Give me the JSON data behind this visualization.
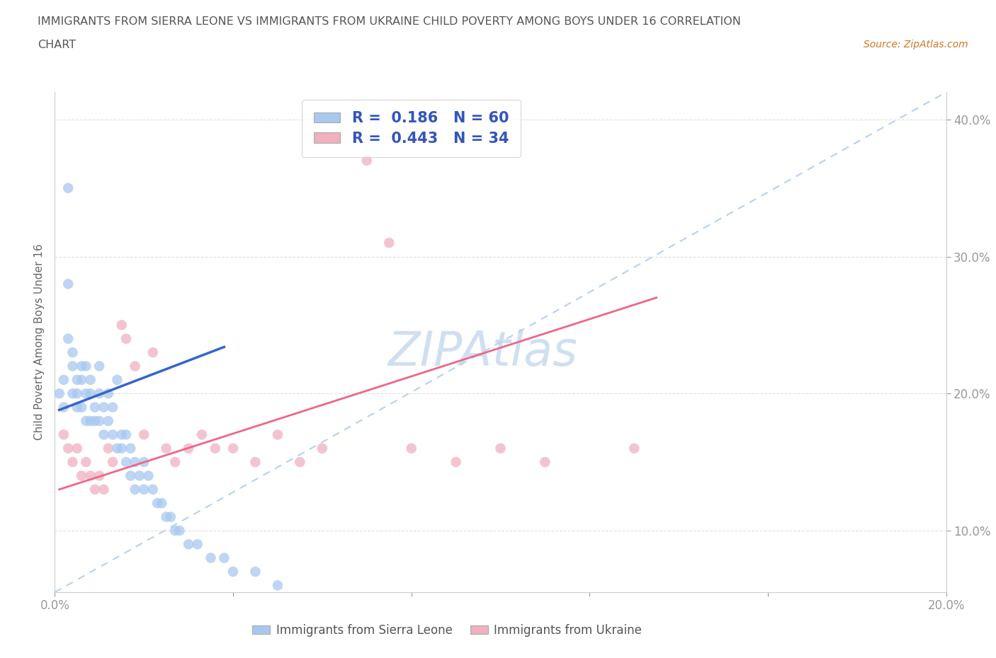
{
  "title_line1": "IMMIGRANTS FROM SIERRA LEONE VS IMMIGRANTS FROM UKRAINE CHILD POVERTY AMONG BOYS UNDER 16 CORRELATION",
  "title_line2": "CHART",
  "source_text": "Source: ZipAtlas.com",
  "ylabel": "Child Poverty Among Boys Under 16",
  "xlim": [
    0.0,
    0.2
  ],
  "ylim": [
    0.055,
    0.42
  ],
  "xtick_vals": [
    0.0,
    0.04,
    0.08,
    0.12,
    0.16,
    0.2
  ],
  "xtick_labels": [
    "0.0%",
    "",
    "",
    "",
    "",
    "20.0%"
  ],
  "ytick_vals": [
    0.1,
    0.2,
    0.3,
    0.4
  ],
  "ytick_labels": [
    "10.0%",
    "20.0%",
    "30.0%",
    "40.0%"
  ],
  "sierra_leone_color": "#a8c8f0",
  "ukraine_color": "#f0b0c0",
  "sierra_leone_R": 0.186,
  "sierra_leone_N": 60,
  "ukraine_R": 0.443,
  "ukraine_N": 34,
  "trend_line_blue_color": "#3366cc",
  "trend_line_pink_color": "#ee6688",
  "diagonal_line_color": "#b8d0f0",
  "watermark": "ZIPAtlas",
  "watermark_color": "#d0dff0",
  "background_color": "#ffffff",
  "legend_text_color": "#3355bb",
  "axis_label_color": "#3355bb",
  "title_color": "#555555",
  "source_color": "#cc7722",
  "sl_x": [
    0.001,
    0.002,
    0.002,
    0.003,
    0.003,
    0.003,
    0.004,
    0.004,
    0.004,
    0.005,
    0.005,
    0.005,
    0.006,
    0.006,
    0.006,
    0.007,
    0.007,
    0.007,
    0.008,
    0.008,
    0.008,
    0.009,
    0.009,
    0.01,
    0.01,
    0.01,
    0.011,
    0.011,
    0.012,
    0.012,
    0.013,
    0.013,
    0.014,
    0.014,
    0.015,
    0.015,
    0.016,
    0.016,
    0.017,
    0.017,
    0.018,
    0.018,
    0.019,
    0.02,
    0.02,
    0.021,
    0.022,
    0.023,
    0.024,
    0.025,
    0.026,
    0.027,
    0.028,
    0.03,
    0.032,
    0.035,
    0.038,
    0.04,
    0.045,
    0.05
  ],
  "sl_y": [
    0.2,
    0.21,
    0.19,
    0.35,
    0.28,
    0.24,
    0.23,
    0.22,
    0.2,
    0.21,
    0.2,
    0.19,
    0.22,
    0.21,
    0.19,
    0.22,
    0.2,
    0.18,
    0.21,
    0.2,
    0.18,
    0.19,
    0.18,
    0.22,
    0.2,
    0.18,
    0.19,
    0.17,
    0.2,
    0.18,
    0.19,
    0.17,
    0.21,
    0.16,
    0.17,
    0.16,
    0.17,
    0.15,
    0.16,
    0.14,
    0.15,
    0.13,
    0.14,
    0.15,
    0.13,
    0.14,
    0.13,
    0.12,
    0.12,
    0.11,
    0.11,
    0.1,
    0.1,
    0.09,
    0.09,
    0.08,
    0.08,
    0.07,
    0.07,
    0.06
  ],
  "uk_x": [
    0.002,
    0.003,
    0.004,
    0.005,
    0.006,
    0.007,
    0.008,
    0.009,
    0.01,
    0.011,
    0.012,
    0.013,
    0.015,
    0.016,
    0.018,
    0.02,
    0.022,
    0.025,
    0.027,
    0.03,
    0.033,
    0.036,
    0.04,
    0.045,
    0.05,
    0.055,
    0.06,
    0.07,
    0.075,
    0.08,
    0.09,
    0.1,
    0.11,
    0.13
  ],
  "uk_y": [
    0.17,
    0.16,
    0.15,
    0.16,
    0.14,
    0.15,
    0.14,
    0.13,
    0.14,
    0.13,
    0.16,
    0.15,
    0.25,
    0.24,
    0.22,
    0.17,
    0.23,
    0.16,
    0.15,
    0.16,
    0.17,
    0.16,
    0.16,
    0.15,
    0.17,
    0.15,
    0.16,
    0.37,
    0.31,
    0.16,
    0.15,
    0.16,
    0.15,
    0.16
  ],
  "sl_trend_x": [
    0.001,
    0.038
  ],
  "sl_trend_y": [
    0.188,
    0.234
  ],
  "uk_trend_x": [
    0.001,
    0.135
  ],
  "uk_trend_y": [
    0.13,
    0.27
  ]
}
